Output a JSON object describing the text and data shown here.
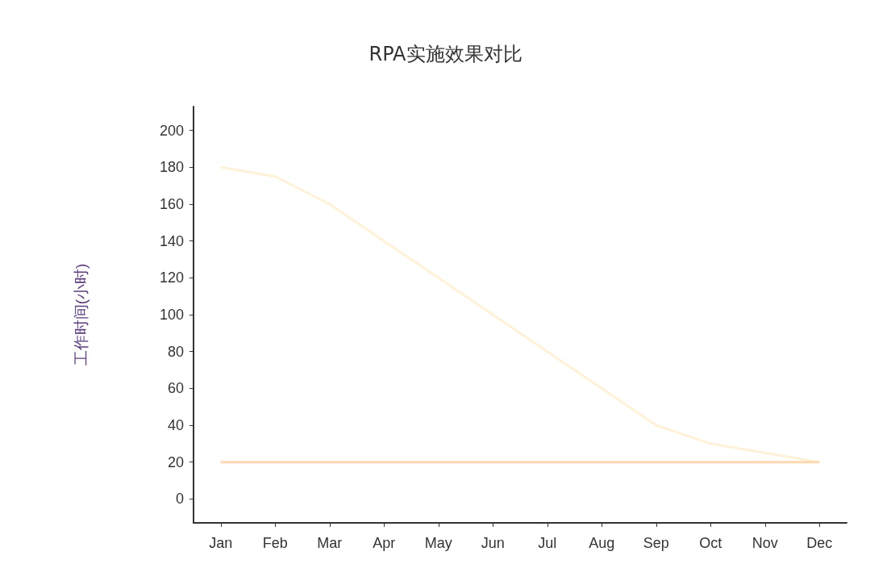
{
  "chart_data": {
    "type": "line",
    "title": "RPA实施效果对比",
    "ylabel": "工作时间(小时)",
    "categories": [
      "Jan",
      "Feb",
      "Mar",
      "Apr",
      "May",
      "Jun",
      "Jul",
      "Aug",
      "Sep",
      "Oct",
      "Nov",
      "Dec"
    ],
    "series": [
      {
        "color": "#fff2d9",
        "values": [
          180,
          175,
          160,
          140,
          120,
          100,
          80,
          60,
          40,
          30,
          25,
          20
        ]
      },
      {
        "color": "#ffd8b0",
        "values": [
          20,
          20,
          20,
          20,
          20,
          20,
          20,
          20,
          20,
          20,
          20,
          20
        ]
      }
    ],
    "ylim": [
      -13,
      213
    ],
    "yticks": [
      0,
      20,
      40,
      60,
      80,
      100,
      120,
      140,
      160,
      180,
      200
    ],
    "grid": false,
    "marker": "none"
  }
}
